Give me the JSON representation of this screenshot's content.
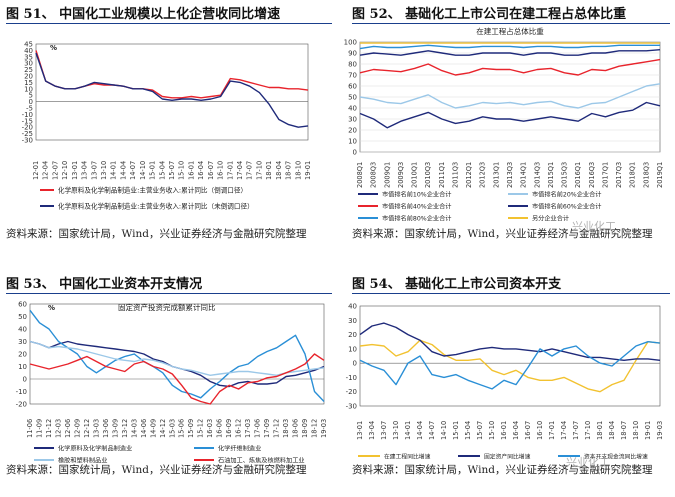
{
  "panels": [
    {
      "title": "图 51、 中国化工业规模以上化企营收同比增速",
      "source": "资料来源：国家统计局，Wind，兴业证券经济与金融研究院整理"
    },
    {
      "title": "图 52、 基础化工上市公司在建工程占总体比重",
      "source": "资料来源：国家统计局，Wind，兴业证券经济与金融研究院整理"
    },
    {
      "title": "图 53、 中国化工业资本开支情况",
      "source": "资料来源：国家统计局，Wind，兴业证券经济与金融研究院整理"
    },
    {
      "title": "图 54、 基础化工上市公司资本开支",
      "source": "资料来源：国家统计局，Wind，兴业证券经济与金融研究院整理"
    }
  ],
  "watermark": "兴业化工",
  "chart_data": [
    {
      "type": "line",
      "unit_label": "%",
      "ylim": [
        -30,
        45
      ],
      "yticks": [
        -30,
        -25,
        -20,
        -15,
        -10,
        -5,
        0,
        5,
        10,
        15,
        20,
        25,
        30,
        35,
        40,
        45
      ],
      "x": [
        "12-01",
        "12-04",
        "12-07",
        "12-10",
        "13-01",
        "13-04",
        "13-07",
        "13-10",
        "14-01",
        "14-04",
        "14-07",
        "14-10",
        "15-01",
        "15-04",
        "15-07",
        "15-10",
        "16-01",
        "16-04",
        "16-07",
        "16-10",
        "17-01",
        "17-04",
        "17-07",
        "17-10",
        "18-01",
        "18-04",
        "18-07",
        "18-10",
        "19-01"
      ],
      "series": [
        {
          "name": "化学原料及化学制品制造业:主营业务收入:累计同比（倒调口径）",
          "color": "#e8242c",
          "values": [
            40,
            16,
            12,
            10,
            10,
            12,
            14,
            13,
            13,
            12,
            10,
            10,
            9,
            4,
            3,
            3,
            4,
            3,
            4,
            5,
            18,
            17,
            15,
            13,
            11,
            11,
            10,
            10,
            9
          ]
        },
        {
          "name": "化学原料及化学制品制造业:主营业务收入:累计同比（未倒调口径）",
          "color": "#1f2a7a",
          "values": [
            38,
            16,
            12,
            10,
            10,
            12,
            15,
            14,
            13,
            12,
            10,
            10,
            8,
            2,
            1,
            2,
            2,
            1,
            2,
            4,
            16,
            15,
            12,
            7,
            -2,
            -14,
            -18,
            -20,
            -19
          ]
        }
      ]
    },
    {
      "type": "line",
      "title": "在建工程占总体比重",
      "ylim": [
        0,
        100
      ],
      "yticks": [
        0,
        10,
        20,
        30,
        40,
        50,
        60,
        70,
        80,
        90,
        100
      ],
      "x": [
        "2008Q1",
        "2008Q3",
        "2009Q1",
        "2009Q3",
        "2010Q1",
        "2010Q3",
        "2011Q1",
        "2011Q3",
        "2012Q1",
        "2012Q3",
        "2013Q1",
        "2013Q3",
        "2014Q1",
        "2014Q3",
        "2015Q1",
        "2015Q3",
        "2016Q1",
        "2016Q3",
        "2017Q1",
        "2017Q3",
        "2018Q1",
        "2018Q3",
        "2019Q1"
      ],
      "series": [
        {
          "name": "市值排名前10%企业合计",
          "color": "#1f2a7a",
          "values": [
            35,
            30,
            22,
            28,
            32,
            36,
            30,
            26,
            28,
            32,
            30,
            30,
            28,
            30,
            32,
            30,
            28,
            35,
            32,
            36,
            38,
            45,
            42
          ]
        },
        {
          "name": "市值排名前20%企业合计",
          "color": "#9cc8e8",
          "values": [
            50,
            48,
            45,
            44,
            48,
            52,
            45,
            40,
            42,
            45,
            44,
            45,
            43,
            45,
            46,
            42,
            40,
            44,
            45,
            50,
            55,
            60,
            62
          ]
        },
        {
          "name": "市值排名前40%企业合计",
          "color": "#e8242c",
          "values": [
            72,
            75,
            74,
            73,
            76,
            80,
            74,
            70,
            72,
            76,
            75,
            75,
            72,
            75,
            76,
            72,
            70,
            75,
            74,
            78,
            80,
            82,
            84
          ]
        },
        {
          "name": "市值排名前60%企业合计",
          "color": "#1f2a7a",
          "values": [
            88,
            90,
            89,
            88,
            90,
            92,
            90,
            88,
            88,
            90,
            90,
            90,
            88,
            90,
            90,
            88,
            88,
            90,
            90,
            92,
            92,
            92,
            93
          ]
        },
        {
          "name": "市值排名前80%企业合计",
          "color": "#2a8fd6",
          "values": [
            94,
            96,
            95,
            95,
            96,
            97,
            96,
            95,
            95,
            96,
            96,
            96,
            95,
            96,
            96,
            95,
            95,
            96,
            96,
            97,
            97,
            97,
            97
          ]
        },
        {
          "name": "另分企业合计",
          "color": "#f2c230",
          "values": [
            99,
            99,
            99,
            99,
            99,
            99,
            99,
            99,
            99,
            99,
            99,
            99,
            99,
            99,
            99,
            99,
            99,
            99,
            99,
            99,
            99,
            99,
            99
          ]
        }
      ]
    },
    {
      "type": "line",
      "title": "固定资产投资完成额累计同比",
      "unit_label": "%",
      "ylim": [
        -20,
        60
      ],
      "yticks": [
        -20,
        -10,
        0,
        10,
        20,
        30,
        40,
        50,
        60
      ],
      "x": [
        "11-06",
        "11-09",
        "11-12",
        "12-03",
        "12-06",
        "12-09",
        "12-12",
        "13-03",
        "13-06",
        "13-09",
        "13-12",
        "14-03",
        "14-06",
        "14-09",
        "14-12",
        "15-03",
        "15-06",
        "15-09",
        "15-12",
        "16-03",
        "16-06",
        "16-09",
        "16-12",
        "17-03",
        "17-06",
        "17-09",
        "17-12",
        "18-03",
        "18-06",
        "18-09",
        "18-12",
        "19-03"
      ],
      "series": [
        {
          "name": "化学原料及化学制品制造业",
          "color": "#1f2a7a",
          "values": [
            30,
            28,
            25,
            28,
            30,
            28,
            27,
            26,
            25,
            24,
            23,
            22,
            20,
            16,
            14,
            10,
            8,
            6,
            3,
            -2,
            -5,
            -6,
            -3,
            -2,
            -4,
            -4,
            -3,
            2,
            3,
            5,
            7,
            10
          ]
        },
        {
          "name": "化学纤维制造业",
          "color": "#2a8fd6",
          "values": [
            55,
            45,
            40,
            30,
            25,
            20,
            10,
            5,
            10,
            15,
            18,
            20,
            14,
            10,
            5,
            -5,
            -10,
            -12,
            -15,
            -8,
            -2,
            5,
            10,
            12,
            18,
            22,
            25,
            30,
            35,
            20,
            -10,
            -18
          ]
        },
        {
          "name": "橡胶和塑料制品业",
          "color": "#9cc8e8",
          "values": [
            30,
            28,
            25,
            26,
            25,
            24,
            22,
            20,
            18,
            16,
            15,
            14,
            16,
            15,
            13,
            10,
            8,
            7,
            5,
            3,
            4,
            5,
            6,
            6,
            5,
            4,
            3,
            5,
            6,
            7,
            8,
            9
          ]
        },
        {
          "name": "石油加工、炼焦及核燃料加工业",
          "color": "#e8242c",
          "values": [
            12,
            10,
            8,
            10,
            12,
            15,
            18,
            14,
            10,
            8,
            6,
            12,
            14,
            10,
            8,
            4,
            -5,
            -15,
            -18,
            -20,
            -10,
            -5,
            -8,
            -3,
            -2,
            1,
            2,
            5,
            8,
            12,
            20,
            15
          ]
        }
      ]
    },
    {
      "type": "line",
      "ylim": [
        -30,
        40
      ],
      "yticks": [
        -30,
        -20,
        -10,
        0,
        10,
        20,
        30,
        40
      ],
      "x": [
        "13-01",
        "13-04",
        "13-07",
        "13-10",
        "14-01",
        "14-04",
        "14-07",
        "14-10",
        "15-01",
        "15-04",
        "15-07",
        "15-10",
        "16-01",
        "16-04",
        "16-07",
        "16-10",
        "17-01",
        "17-04",
        "17-07",
        "17-10",
        "18-01",
        "18-04",
        "18-07",
        "18-10",
        "19-01",
        "19-03"
      ],
      "series": [
        {
          "name": "在建工程同比增速",
          "color": "#f2c230",
          "values": [
            12,
            13,
            12,
            5,
            8,
            16,
            13,
            6,
            2,
            2,
            3,
            -5,
            -8,
            -5,
            -10,
            -12,
            -12,
            -10,
            -14,
            -18,
            -20,
            -15,
            -12,
            2,
            15,
            14
          ]
        },
        {
          "name": "固定资产同比增速",
          "color": "#1f2a7a",
          "values": [
            20,
            26,
            28,
            25,
            20,
            16,
            8,
            5,
            6,
            8,
            10,
            11,
            10,
            10,
            9,
            8,
            10,
            8,
            6,
            4,
            4,
            3,
            2,
            3,
            3,
            2
          ]
        },
        {
          "name": "资本开支现金流同比增速",
          "color": "#2a8fd6",
          "values": [
            2,
            -2,
            -5,
            -15,
            0,
            5,
            -8,
            -10,
            -8,
            -12,
            -15,
            -18,
            -12,
            -15,
            -3,
            10,
            5,
            10,
            12,
            5,
            0,
            -2,
            5,
            12,
            15,
            14
          ]
        }
      ]
    }
  ]
}
